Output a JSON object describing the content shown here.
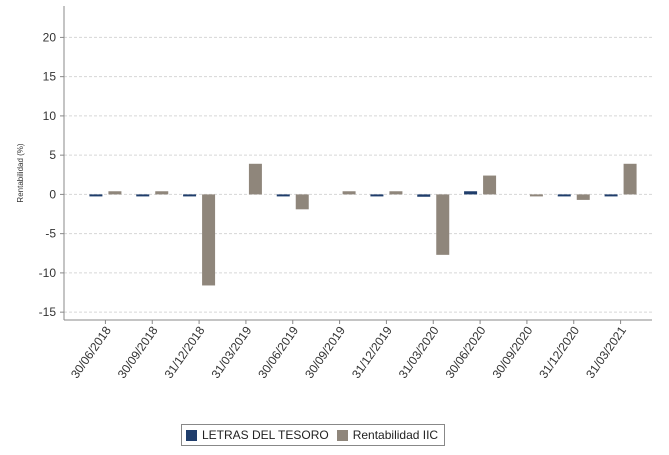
{
  "chart_data": {
    "type": "bar",
    "title": "",
    "xlabel": "",
    "ylabel": "Rentabilidad (%)",
    "ylim": [
      -16,
      24
    ],
    "yticks": [
      -15,
      -10,
      -5,
      0,
      5,
      10,
      15,
      20
    ],
    "grid": true,
    "legend_position": "bottom",
    "categories": [
      "30/06/2018",
      "30/09/2018",
      "31/12/2018",
      "31/03/2019",
      "30/06/2019",
      "30/09/2019",
      "31/12/2019",
      "31/03/2020",
      "30/06/2020",
      "30/09/2020",
      "31/12/2020",
      "31/03/2021"
    ],
    "series": [
      {
        "name": "LETRAS DEL TESORO",
        "color": "#1f3d6b",
        "values": [
          -0.1,
          -0.15,
          -0.1,
          0.0,
          -0.1,
          0.0,
          -0.1,
          -0.3,
          0.4,
          0.0,
          -0.1,
          -0.2
        ]
      },
      {
        "name": "Rentabilidad IIC",
        "color": "#8f867b",
        "values": [
          0.4,
          0.4,
          -11.6,
          3.9,
          -1.9,
          0.4,
          0.4,
          -7.7,
          2.4,
          -0.2,
          -0.7,
          3.9
        ]
      }
    ]
  }
}
